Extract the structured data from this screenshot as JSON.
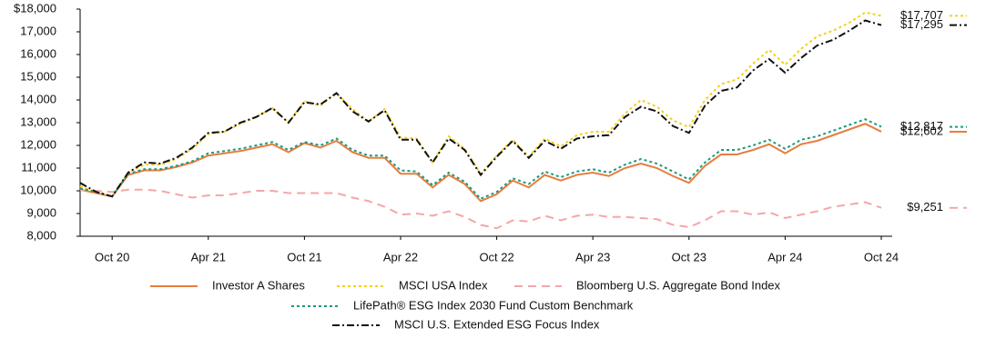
{
  "chart_data": {
    "type": "line",
    "categories": [
      null,
      null,
      "Oct 20",
      null,
      null,
      null,
      null,
      null,
      "Apr 21",
      null,
      null,
      null,
      null,
      null,
      "Oct 21",
      null,
      null,
      null,
      null,
      null,
      "Apr 22",
      null,
      null,
      null,
      null,
      null,
      "Oct 22",
      null,
      null,
      null,
      null,
      null,
      "Apr 23",
      null,
      null,
      null,
      null,
      null,
      "Oct 23",
      null,
      null,
      null,
      null,
      null,
      "Apr 24",
      null,
      null,
      null,
      null,
      null,
      "Oct 24"
    ],
    "ylim": [
      8000,
      18000
    ],
    "yticks": [
      {
        "value": 8000,
        "label": "8,000"
      },
      {
        "value": 9000,
        "label": "9,000"
      },
      {
        "value": 10000,
        "label": "10,000"
      },
      {
        "value": 11000,
        "label": "11,000"
      },
      {
        "value": 12000,
        "label": "12,000"
      },
      {
        "value": 13000,
        "label": "13,000"
      },
      {
        "value": 14000,
        "label": "14,000"
      },
      {
        "value": 15000,
        "label": "15,000"
      },
      {
        "value": 16000,
        "label": "16,000"
      },
      {
        "value": 17000,
        "label": "17,000"
      },
      {
        "value": 18000,
        "label": "$18,000"
      }
    ],
    "series": [
      {
        "name": "Investor A Shares",
        "color": "#e87d3e",
        "dash": "solid",
        "values": [
          10050,
          9900,
          9750,
          10700,
          10900,
          10900,
          11050,
          11250,
          11550,
          11650,
          11750,
          11900,
          12050,
          11700,
          12100,
          11900,
          12200,
          11700,
          11450,
          11450,
          10750,
          10750,
          10150,
          10700,
          10300,
          9550,
          9850,
          10450,
          10150,
          10700,
          10450,
          10700,
          10800,
          10650,
          11000,
          11200,
          11000,
          10650,
          10350,
          11100,
          11600,
          11600,
          11800,
          12050,
          11650,
          12050,
          12200,
          12450,
          12700,
          12950,
          12602
        ],
        "value_labels": [
          null,
          null,
          null,
          null,
          null,
          null,
          null,
          null,
          null,
          null,
          null,
          null,
          null,
          null,
          null,
          null,
          null,
          null,
          null,
          null,
          null,
          null,
          null,
          null,
          null,
          null,
          null,
          null,
          null,
          null,
          null,
          null,
          null,
          null,
          null,
          null,
          null,
          null,
          null,
          null,
          null,
          null,
          null,
          null,
          null,
          null,
          null,
          null,
          null,
          null,
          "$12,602"
        ]
      },
      {
        "name": "MSCI USA Index",
        "color": "#f2d21b",
        "dash": "dotted",
        "values": [
          10200,
          9950,
          9750,
          10800,
          11150,
          11150,
          11400,
          11850,
          12500,
          12600,
          12950,
          13250,
          13650,
          13000,
          13950,
          13750,
          14300,
          13600,
          13050,
          13600,
          12350,
          12300,
          11250,
          12400,
          11850,
          10750,
          11550,
          12250,
          11500,
          12300,
          11950,
          12450,
          12600,
          12600,
          13400,
          14000,
          13700,
          13100,
          12800,
          14000,
          14700,
          14900,
          15600,
          16200,
          15550,
          16250,
          16800,
          17050,
          17400,
          17850,
          17707
        ],
        "value_labels": [
          null,
          null,
          null,
          null,
          null,
          null,
          null,
          null,
          null,
          null,
          null,
          null,
          null,
          null,
          null,
          null,
          null,
          null,
          null,
          null,
          null,
          null,
          null,
          null,
          null,
          null,
          null,
          null,
          null,
          null,
          null,
          null,
          null,
          null,
          null,
          null,
          null,
          null,
          null,
          null,
          null,
          null,
          null,
          null,
          null,
          null,
          null,
          null,
          null,
          null,
          "$17,707"
        ]
      },
      {
        "name": "Bloomberg U.S. Aggregate Bond Index",
        "color": "#f4a7a7",
        "dash": "dashed",
        "values": [
          10050,
          10000,
          9950,
          10050,
          10050,
          10000,
          9850,
          9700,
          9800,
          9800,
          9900,
          10000,
          10000,
          9900,
          9900,
          9900,
          9900,
          9700,
          9550,
          9300,
          8950,
          9000,
          8900,
          9100,
          8850,
          8500,
          8350,
          8700,
          8650,
          8900,
          8700,
          8900,
          8950,
          8850,
          8850,
          8800,
          8750,
          8500,
          8400,
          8700,
          9100,
          9100,
          8950,
          9050,
          8800,
          8950,
          9100,
          9300,
          9400,
          9500,
          9251
        ],
        "value_labels": [
          null,
          null,
          null,
          null,
          null,
          null,
          null,
          null,
          null,
          null,
          null,
          null,
          null,
          null,
          null,
          null,
          null,
          null,
          null,
          null,
          null,
          null,
          null,
          null,
          null,
          null,
          null,
          null,
          null,
          null,
          null,
          null,
          null,
          null,
          null,
          null,
          null,
          null,
          null,
          null,
          null,
          null,
          null,
          null,
          null,
          null,
          null,
          null,
          null,
          null,
          "$9,251"
        ]
      },
      {
        "name": "LifePath® ESG Index 2030 Fund Custom Benchmark",
        "color": "#1a9a7f",
        "dash": "dotted",
        "values": [
          10100,
          9950,
          9750,
          10750,
          10950,
          10950,
          11100,
          11300,
          11650,
          11750,
          11850,
          12000,
          12150,
          11800,
          12150,
          12000,
          12300,
          11800,
          11550,
          11550,
          10900,
          10850,
          10250,
          10800,
          10400,
          9650,
          9950,
          10550,
          10300,
          10850,
          10600,
          10850,
          10950,
          10800,
          11150,
          11400,
          11200,
          10850,
          10500,
          11250,
          11800,
          11800,
          12000,
          12250,
          11850,
          12250,
          12400,
          12650,
          12900,
          13150,
          12817
        ],
        "value_labels": [
          null,
          null,
          null,
          null,
          null,
          null,
          null,
          null,
          null,
          null,
          null,
          null,
          null,
          null,
          null,
          null,
          null,
          null,
          null,
          null,
          null,
          null,
          null,
          null,
          null,
          null,
          null,
          null,
          null,
          null,
          null,
          null,
          null,
          null,
          null,
          null,
          null,
          null,
          null,
          null,
          null,
          null,
          null,
          null,
          null,
          null,
          null,
          null,
          null,
          null,
          "$12,817"
        ]
      },
      {
        "name": "MSCI U.S. Extended ESG Focus Index",
        "color": "#111111",
        "dash": "dashdot",
        "values": [
          10350,
          9950,
          9750,
          10800,
          11250,
          11200,
          11450,
          11900,
          12550,
          12600,
          13000,
          13250,
          13650,
          13000,
          13900,
          13800,
          14300,
          13500,
          13050,
          13550,
          12250,
          12250,
          11250,
          12300,
          11800,
          10700,
          11500,
          12200,
          11450,
          12200,
          11850,
          12300,
          12400,
          12450,
          13250,
          13700,
          13500,
          12850,
          12550,
          13750,
          14400,
          14550,
          15300,
          15800,
          15200,
          15850,
          16400,
          16650,
          17050,
          17500,
          17295
        ],
        "value_labels": [
          null,
          null,
          null,
          null,
          null,
          null,
          null,
          null,
          null,
          null,
          null,
          null,
          null,
          null,
          null,
          null,
          null,
          null,
          null,
          null,
          null,
          null,
          null,
          null,
          null,
          null,
          null,
          null,
          null,
          null,
          null,
          null,
          null,
          null,
          null,
          null,
          null,
          null,
          null,
          null,
          null,
          null,
          null,
          null,
          null,
          null,
          null,
          null,
          null,
          null,
          "$17,295"
        ]
      }
    ]
  }
}
